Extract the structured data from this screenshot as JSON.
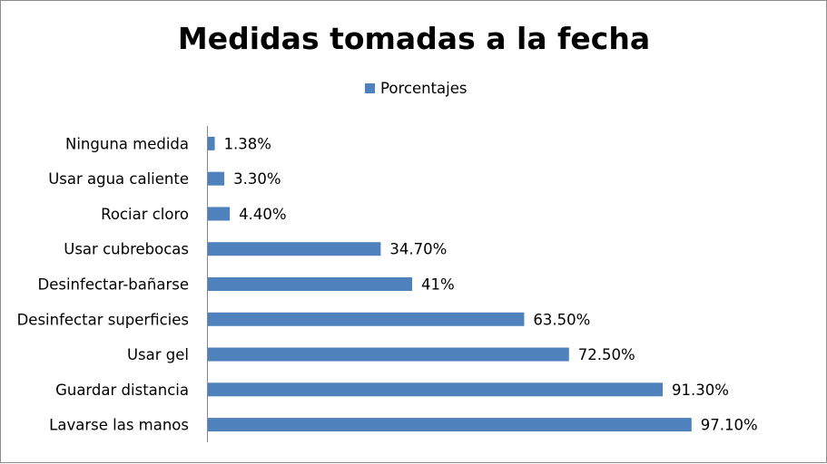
{
  "chart_data": {
    "type": "bar",
    "orientation": "horizontal",
    "title": "Medidas tomadas a la fecha",
    "xlabel": "",
    "ylabel": "",
    "xlim": [
      0,
      100
    ],
    "grid": false,
    "legend_position": "top",
    "categories": [
      "Ninguna medida",
      "Usar agua caliente",
      "Rociar cloro",
      "Usar cubrebocas",
      "Desinfectar-bañarse",
      "Desinfectar superficies",
      "Usar gel",
      "Guardar distancia",
      "Lavarse las manos"
    ],
    "series": [
      {
        "name": "Porcentajes",
        "color": "#4f81bd",
        "values": [
          1.38,
          3.3,
          4.4,
          34.7,
          41,
          63.5,
          72.5,
          91.3,
          97.1
        ],
        "data_labels": [
          "1.38%",
          "3.30%",
          "4.40%",
          "34.70%",
          "41%",
          "63.50%",
          "72.50%",
          "91.30%",
          "97.10%"
        ]
      }
    ]
  }
}
